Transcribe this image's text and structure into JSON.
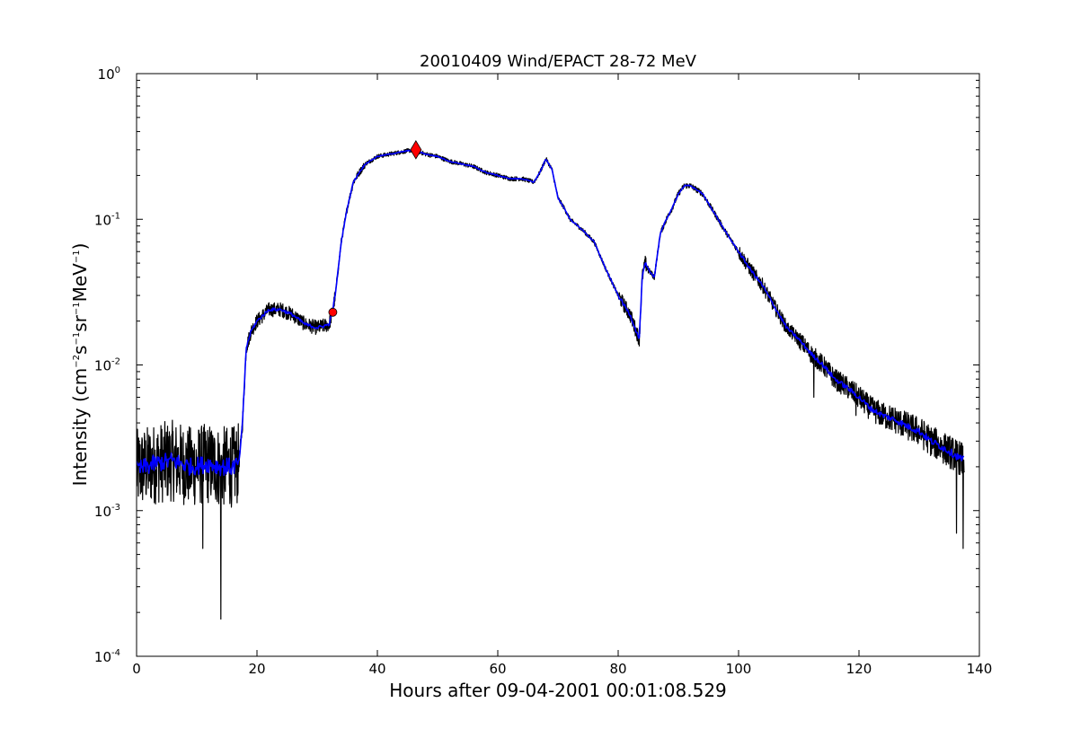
{
  "chart_data": {
    "type": "line",
    "title": "20010409 Wind/EPACT 28-72 MeV",
    "xlabel": "Hours after 09-04-2001 00:01:08.529",
    "ylabel": {
      "prefix": "Intensity (cm",
      "sup1": "−2",
      "mid1": "s",
      "sup2": "−1",
      "mid2": "sr",
      "sup3": "−1",
      "mid3": "MeV",
      "sup4": "−1",
      "suffix": ")"
    },
    "xlim": [
      0,
      140
    ],
    "ylim": [
      0.0001,
      1
    ],
    "yscale": "log",
    "grid": false,
    "x_ticks": [
      0,
      20,
      40,
      60,
      80,
      100,
      120,
      140
    ],
    "y_ticks": [
      {
        "value": 0.0001,
        "base": "10",
        "exp": "-4"
      },
      {
        "value": 0.001,
        "base": "10",
        "exp": "-3"
      },
      {
        "value": 0.01,
        "base": "10",
        "exp": "-2"
      },
      {
        "value": 0.1,
        "base": "10",
        "exp": "-1"
      },
      {
        "value": 1,
        "base": "10",
        "exp": "0"
      }
    ],
    "series": [
      {
        "color": "#000000",
        "style": "raw, high-frequency noise",
        "x": [
          0,
          3,
          6,
          9,
          12,
          14,
          16,
          17,
          17.6,
          18.2,
          19,
          20,
          22,
          24,
          26,
          28,
          30,
          32,
          32.5,
          33,
          34,
          35,
          36,
          37,
          38,
          40,
          42,
          44,
          46,
          48,
          50,
          52,
          54,
          56,
          58,
          60,
          62,
          64,
          66,
          67,
          68,
          69,
          70,
          71,
          72,
          74,
          76,
          78,
          80,
          82,
          83.5,
          84,
          84.5,
          85,
          86,
          87,
          88,
          89,
          90,
          91,
          92,
          93,
          94,
          96,
          98,
          100,
          102,
          104,
          106,
          108,
          110,
          112,
          114,
          116,
          118,
          120,
          122,
          124,
          126,
          128,
          130,
          132,
          134,
          136,
          137.5
        ],
        "y": [
          0.0019,
          0.0021,
          0.0022,
          0.002,
          0.0021,
          0.002,
          0.002,
          0.0021,
          0.004,
          0.013,
          0.017,
          0.02,
          0.024,
          0.024,
          0.022,
          0.019,
          0.018,
          0.019,
          0.023,
          0.03,
          0.07,
          0.12,
          0.18,
          0.21,
          0.24,
          0.27,
          0.28,
          0.29,
          0.3,
          0.28,
          0.27,
          0.25,
          0.24,
          0.23,
          0.21,
          0.2,
          0.19,
          0.19,
          0.18,
          0.21,
          0.26,
          0.22,
          0.14,
          0.12,
          0.1,
          0.085,
          0.07,
          0.045,
          0.03,
          0.022,
          0.015,
          0.04,
          0.05,
          0.045,
          0.04,
          0.08,
          0.1,
          0.12,
          0.15,
          0.17,
          0.17,
          0.16,
          0.15,
          0.11,
          0.08,
          0.06,
          0.045,
          0.035,
          0.025,
          0.018,
          0.015,
          0.012,
          0.01,
          0.008,
          0.007,
          0.006,
          0.005,
          0.0045,
          0.0042,
          0.0038,
          0.0035,
          0.003,
          0.0027,
          0.0024,
          0.0022
        ]
      },
      {
        "color": "#0000ff",
        "style": "smoothed",
        "x": [
          0,
          3,
          6,
          9,
          12,
          14,
          16,
          17,
          17.6,
          18.2,
          19,
          20,
          22,
          24,
          26,
          28,
          30,
          32,
          32.5,
          33,
          34,
          35,
          36,
          37,
          38,
          40,
          42,
          44,
          46,
          48,
          50,
          52,
          54,
          56,
          58,
          60,
          62,
          64,
          66,
          67,
          68,
          69,
          70,
          71,
          72,
          74,
          76,
          78,
          80,
          82,
          83.5,
          84,
          84.5,
          85,
          86,
          87,
          88,
          89,
          90,
          91,
          92,
          93,
          94,
          96,
          98,
          100,
          102,
          104,
          106,
          108,
          110,
          112,
          114,
          116,
          118,
          120,
          122,
          124,
          126,
          128,
          130,
          132,
          134,
          136,
          137.5
        ],
        "y": [
          0.0019,
          0.0021,
          0.0022,
          0.002,
          0.0021,
          0.002,
          0.002,
          0.0021,
          0.004,
          0.013,
          0.017,
          0.02,
          0.024,
          0.024,
          0.022,
          0.019,
          0.018,
          0.019,
          0.023,
          0.03,
          0.07,
          0.12,
          0.18,
          0.21,
          0.24,
          0.27,
          0.28,
          0.29,
          0.3,
          0.28,
          0.27,
          0.25,
          0.24,
          0.23,
          0.21,
          0.2,
          0.19,
          0.19,
          0.18,
          0.21,
          0.26,
          0.22,
          0.14,
          0.12,
          0.1,
          0.085,
          0.07,
          0.045,
          0.03,
          0.022,
          0.015,
          0.04,
          0.05,
          0.045,
          0.04,
          0.08,
          0.1,
          0.12,
          0.15,
          0.17,
          0.17,
          0.16,
          0.15,
          0.11,
          0.08,
          0.06,
          0.045,
          0.035,
          0.025,
          0.018,
          0.015,
          0.012,
          0.01,
          0.008,
          0.007,
          0.006,
          0.005,
          0.0045,
          0.0042,
          0.0038,
          0.0035,
          0.003,
          0.0027,
          0.0024,
          0.0022
        ]
      }
    ],
    "markers": [
      {
        "shape": "circle",
        "color": "#ff0000",
        "x": 32.6,
        "y": 0.023
      },
      {
        "shape": "diamond",
        "color": "#ff0000",
        "x": 46.4,
        "y": 0.3
      }
    ],
    "spikes": [
      {
        "x": 14.0,
        "y": 0.00018
      },
      {
        "x": 11.0,
        "y": 0.00055
      },
      {
        "x": 112.5,
        "y": 0.006
      },
      {
        "x": 119.5,
        "y": 0.0045
      },
      {
        "x": 136.2,
        "y": 0.0007
      },
      {
        "x": 137.3,
        "y": 0.00055
      }
    ]
  }
}
